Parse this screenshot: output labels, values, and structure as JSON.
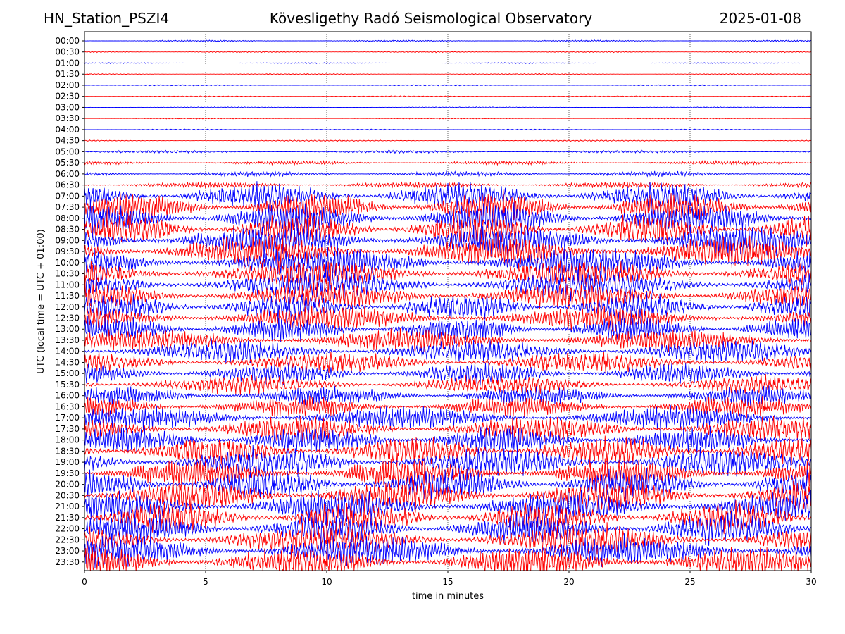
{
  "header": {
    "station": "HN_Station_PSZI4",
    "observatory": "Kövesligethy Radó Seismological Observatory",
    "date": "2025-01-08"
  },
  "chart_data": {
    "type": "line",
    "title": "Kövesligethy Radó Seismological Observatory",
    "xlabel": "time in minutes",
    "ylabel": "UTC (local time = UTC + 01:00)",
    "xlim": [
      0,
      30
    ],
    "xticks": [
      "0",
      "5",
      "10",
      "15",
      "20",
      "25",
      "30"
    ],
    "grid_x": [
      5,
      10,
      15,
      20,
      25
    ],
    "grid_style": "dotted",
    "row_colors": [
      "#0000ff",
      "#ff0000"
    ],
    "rows": [
      "00:00",
      "00:30",
      "01:00",
      "01:30",
      "02:00",
      "02:30",
      "03:00",
      "03:30",
      "04:00",
      "04:30",
      "05:00",
      "05:30",
      "06:00",
      "06:30",
      "07:00",
      "07:30",
      "08:00",
      "08:30",
      "09:00",
      "09:30",
      "10:00",
      "10:30",
      "11:00",
      "11:30",
      "12:00",
      "12:30",
      "13:00",
      "13:30",
      "14:00",
      "14:30",
      "15:00",
      "15:30",
      "16:00",
      "16:30",
      "17:00",
      "17:30",
      "18:00",
      "18:30",
      "19:00",
      "19:30",
      "20:00",
      "20:30",
      "21:00",
      "21:30",
      "22:00",
      "22:30",
      "23:00",
      "23:30"
    ],
    "relative_amplitude": [
      0.15,
      0.12,
      0.1,
      0.1,
      0.1,
      0.1,
      0.1,
      0.1,
      0.1,
      0.12,
      0.25,
      0.35,
      0.5,
      0.6,
      2.5,
      2.8,
      3.0,
      3.0,
      3.0,
      3.0,
      3.0,
      2.8,
      2.8,
      2.6,
      2.6,
      2.4,
      2.4,
      2.2,
      2.2,
      2.0,
      2.0,
      1.8,
      1.8,
      2.0,
      2.2,
      2.4,
      2.6,
      2.8,
      2.8,
      2.8,
      3.0,
      3.0,
      3.0,
      3.0,
      3.0,
      3.0,
      3.0,
      3.0
    ]
  }
}
